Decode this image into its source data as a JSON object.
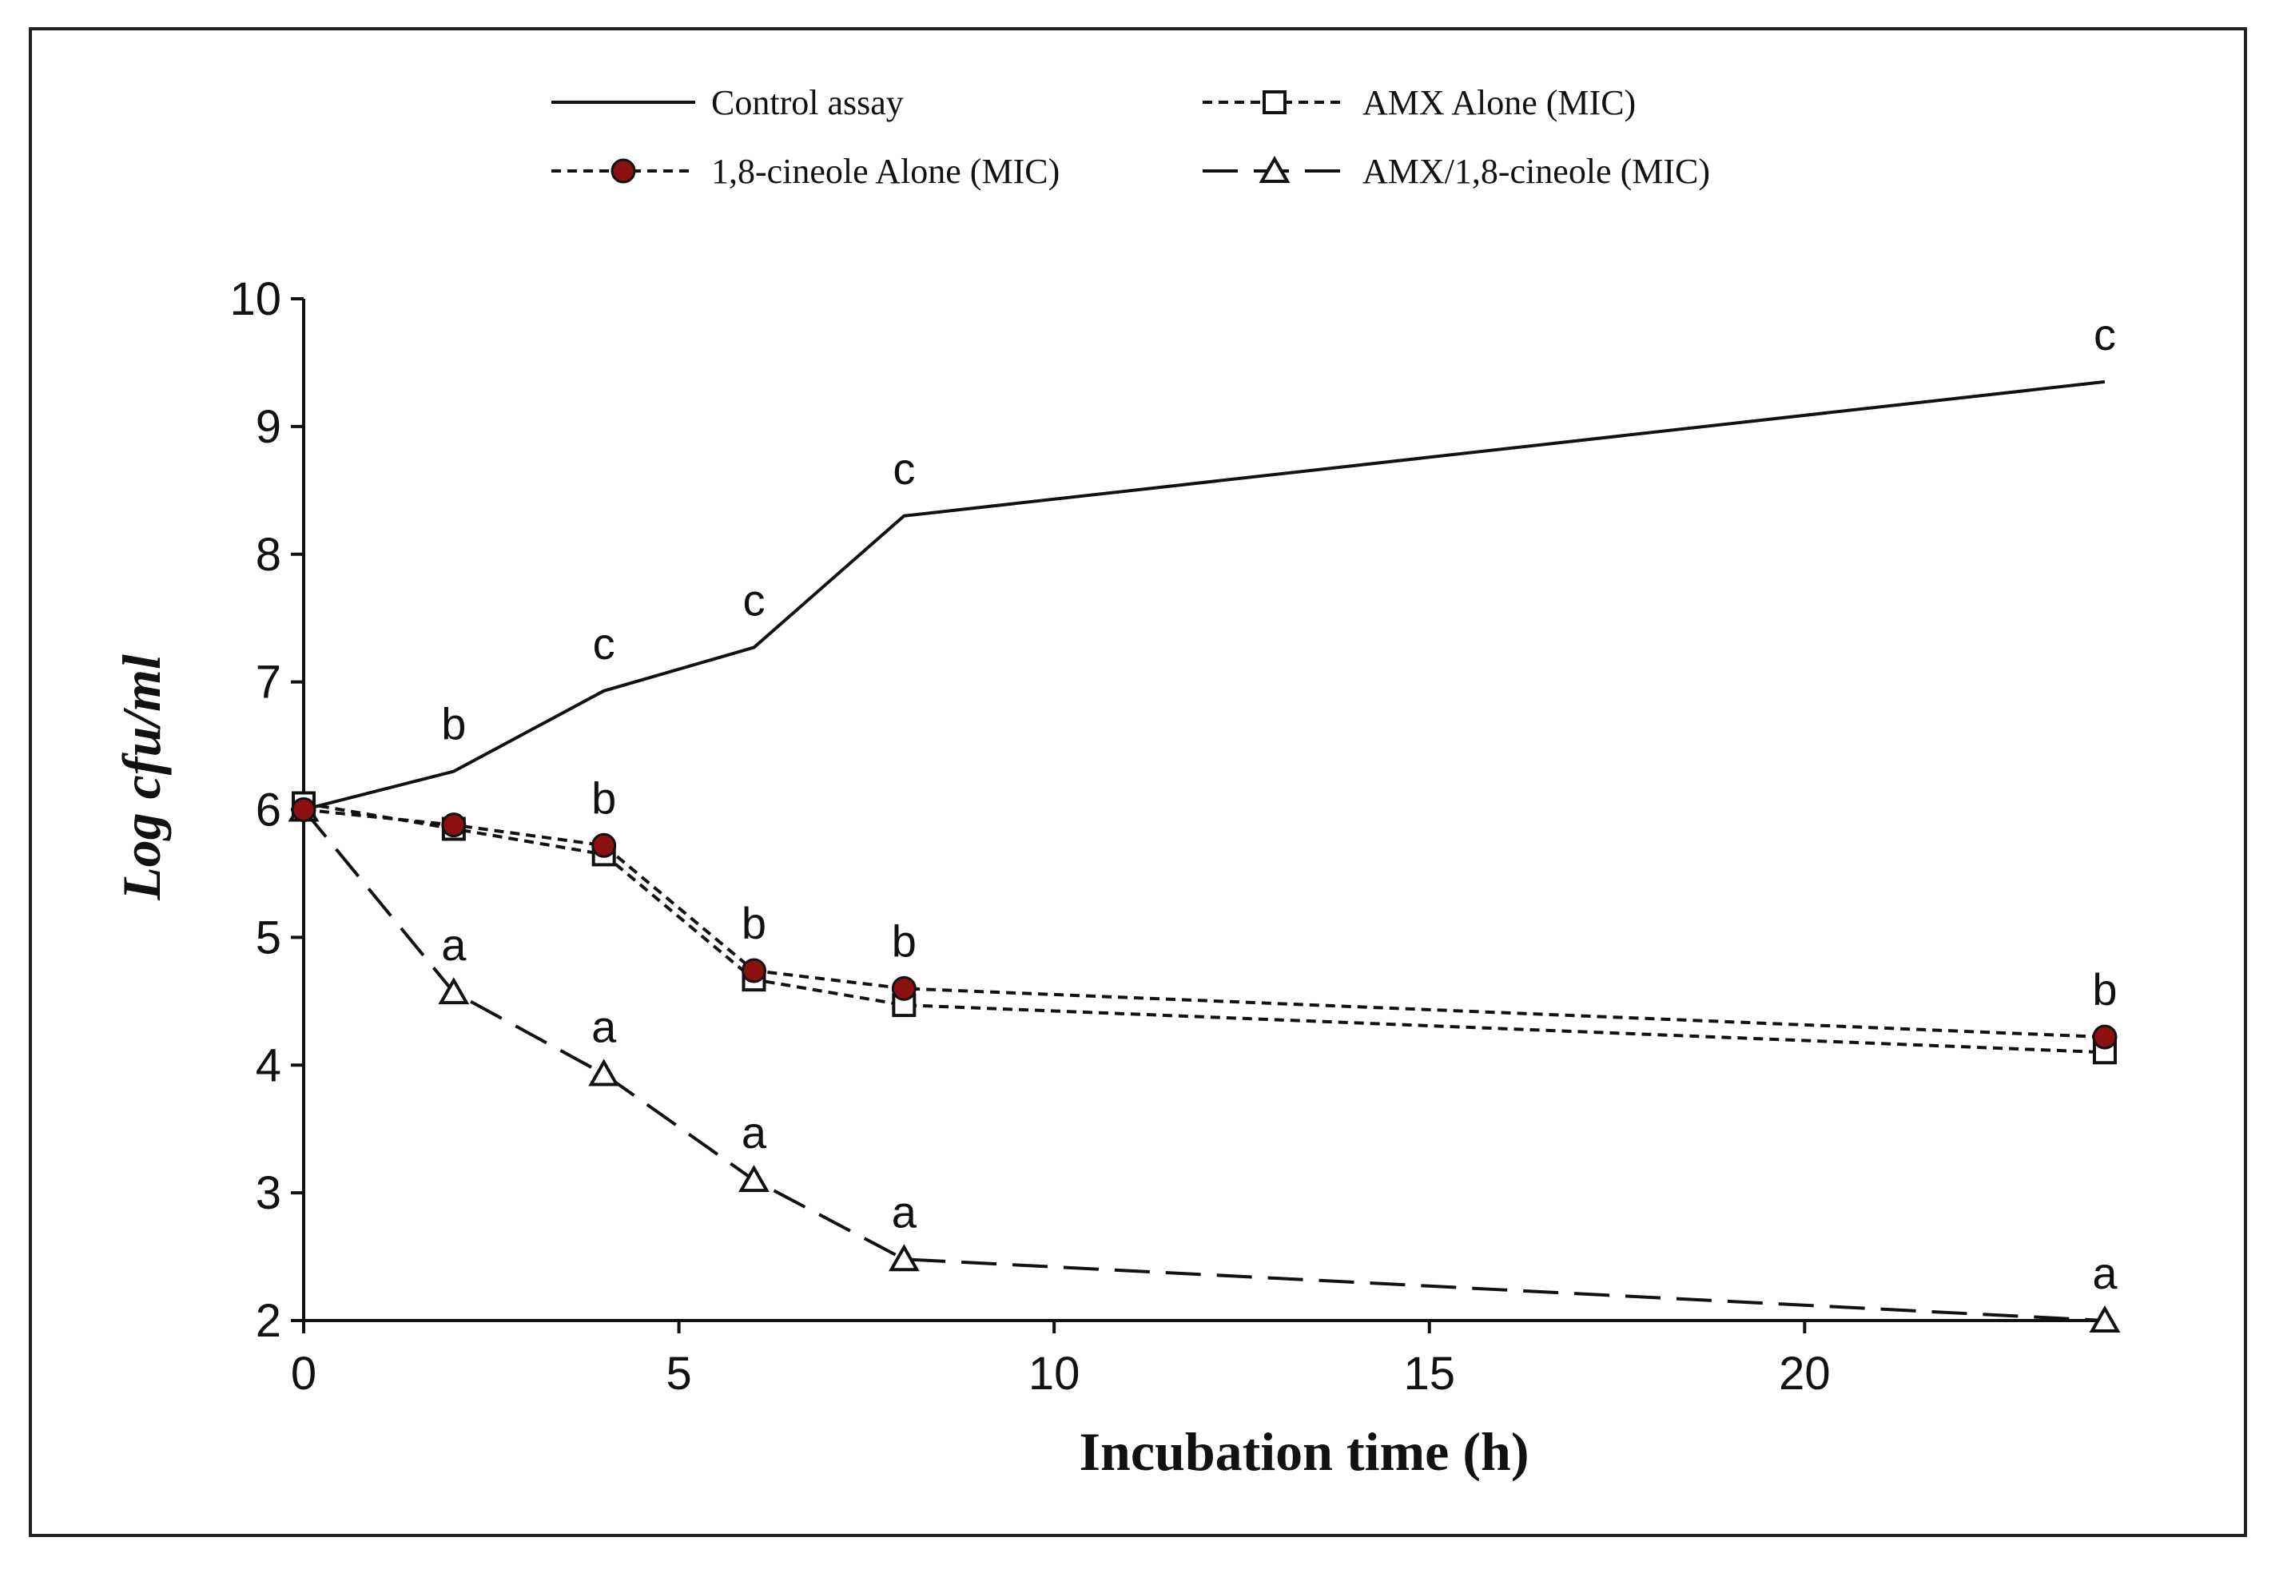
{
  "chart_data": {
    "type": "line",
    "title": "",
    "xlabel": "Incubation time (h)",
    "ylabel": "Log cfu/ml",
    "xlim": [
      0,
      24
    ],
    "ylim": [
      2,
      10
    ],
    "xticks": [
      0,
      5,
      10,
      15,
      20
    ],
    "yticks": [
      2,
      3,
      4,
      5,
      6,
      7,
      8,
      9,
      10
    ],
    "grid": false,
    "legend_position": "top",
    "x": [
      0,
      2,
      4,
      6,
      8,
      24
    ],
    "series": [
      {
        "name": "Control assay",
        "style": "solid",
        "marker": "none",
        "color": "#111111",
        "values": [
          6.0,
          6.3,
          6.93,
          7.27,
          8.3,
          9.35
        ],
        "annotations": [
          "",
          "b",
          "c",
          "c",
          "c",
          "c"
        ]
      },
      {
        "name": "AMX Alone (MIC)",
        "style": "dotted",
        "marker": "square",
        "color": "#111111",
        "values": [
          6.05,
          5.85,
          5.65,
          4.67,
          4.47,
          4.1
        ],
        "annotations": [
          "",
          "",
          "",
          "",
          "",
          ""
        ]
      },
      {
        "name": "1,8-cineole Alone (MIC)",
        "style": "dotted",
        "marker": "circle",
        "color": "#111111",
        "marker_fill": "#8b1010",
        "values": [
          6.0,
          5.88,
          5.72,
          4.74,
          4.6,
          4.22
        ],
        "annotations": [
          "",
          "",
          "b",
          "b",
          "b",
          "b"
        ]
      },
      {
        "name": "AMX/1,8-cineole (MIC)",
        "style": "long-dash",
        "marker": "triangle",
        "color": "#111111",
        "values": [
          6.0,
          4.57,
          3.93,
          3.1,
          2.48,
          2.0
        ],
        "annotations": [
          "",
          "a",
          "a",
          "a",
          "a",
          "a"
        ]
      }
    ]
  }
}
